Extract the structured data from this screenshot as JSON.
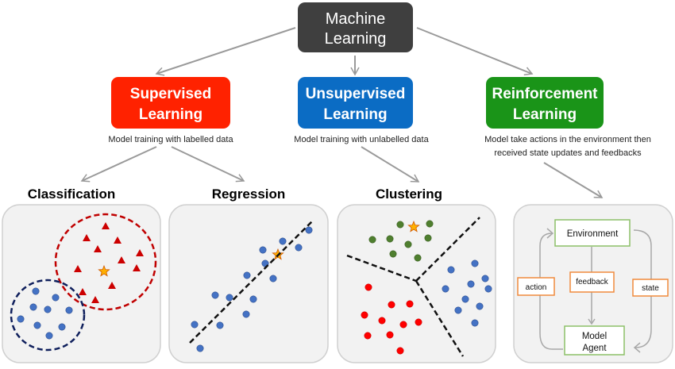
{
  "root": {
    "line1": "Machine",
    "line2": "Learning",
    "color": "#3f3f3f"
  },
  "categories": [
    {
      "line1": "Supervised",
      "line2": "Learning",
      "color": "#ff2200",
      "desc": [
        "Model training with labelled data"
      ]
    },
    {
      "line1": "Unsupervised",
      "line2": "Learning",
      "color": "#0b6cc4",
      "desc": [
        "Model training with unlabelled data"
      ]
    },
    {
      "line1": "Reinforcement",
      "line2": "Learning",
      "color": "#1a9418",
      "desc": [
        "Model take actions in the environment then",
        "received state updates and feedbacks"
      ]
    }
  ],
  "tasks": {
    "classification": "Classification",
    "regression": "Regression",
    "clustering": "Clustering"
  },
  "rl": {
    "environment": "Environment",
    "agent_line1": "Model",
    "agent_line2": "Agent",
    "action": "action",
    "feedback": "feedback",
    "state": "state"
  },
  "colors": {
    "red_class": "#cc0000",
    "blue_points": "#4472c4",
    "green_points": "#4f7f2f",
    "red_points": "#ff0000",
    "star": "#ffb000",
    "panel": "#f2f2f2",
    "rl_box_border": "#8cc068",
    "rl_label_border": "#f08a3c"
  }
}
